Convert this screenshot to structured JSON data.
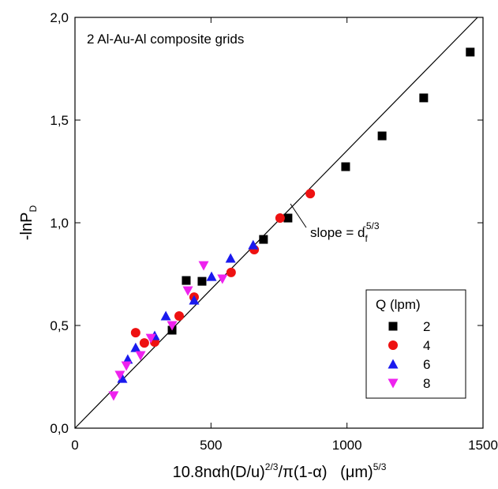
{
  "chart_data": {
    "type": "scatter",
    "annotation": "2 Al-Au-Al composite grids",
    "x_label": {
      "main": "10.8nαh(D/u)",
      "sup1": "2/3",
      "mid": "/π(1-α)   (μm)",
      "sup2": "5/3"
    },
    "y_label": {
      "main": "-lnP",
      "sub": "D"
    },
    "slope_label": {
      "main": "slope = d",
      "sub": "f",
      "sup": "-5/3"
    },
    "xlim": [
      0,
      1500
    ],
    "ylim": [
      0,
      2.0
    ],
    "xticks": [
      0,
      500,
      1000,
      1500
    ],
    "yticks": [
      {
        "value": 0,
        "label": "0,0"
      },
      {
        "value": 0.5,
        "label": "0,5"
      },
      {
        "value": 1.0,
        "label": "1,0"
      },
      {
        "value": 1.5,
        "label": "1,5"
      },
      {
        "value": 2.0,
        "label": "2,0"
      }
    ],
    "legend_title": "Q (lpm)",
    "legend": "lower right",
    "fit_line": {
      "x": [
        0,
        1480
      ],
      "y": [
        0,
        2.0
      ],
      "color": "#000000"
    },
    "series": [
      {
        "name": "2",
        "color": "#000000",
        "marker": "square",
        "x": [
          357,
          409,
          467,
          693,
          783,
          995,
          1129,
          1282,
          1453
        ],
        "values": [
          0.477,
          0.719,
          0.715,
          0.919,
          1.023,
          1.273,
          1.423,
          1.608,
          1.831
        ]
      },
      {
        "name": "4",
        "color": "#ee1111",
        "marker": "circle",
        "x": [
          223,
          255,
          293,
          383,
          438,
          574,
          659,
          754,
          865
        ],
        "values": [
          0.465,
          0.415,
          0.419,
          0.546,
          0.638,
          0.758,
          0.869,
          1.023,
          1.142
        ]
      },
      {
        "name": "6",
        "color": "#1a1aee",
        "marker": "triangle",
        "x": [
          174,
          194,
          223,
          293,
          334,
          438,
          502,
          572,
          655
        ],
        "values": [
          0.242,
          0.335,
          0.392,
          0.45,
          0.546,
          0.623,
          0.738,
          0.827,
          0.892
        ]
      },
      {
        "name": "8",
        "color": "#ee22ee",
        "marker": "triangle-down",
        "x": [
          142,
          165,
          189,
          241,
          279,
          357,
          415,
          473,
          542
        ],
        "values": [
          0.158,
          0.258,
          0.304,
          0.354,
          0.438,
          0.5,
          0.669,
          0.792,
          0.727
        ]
      }
    ]
  }
}
